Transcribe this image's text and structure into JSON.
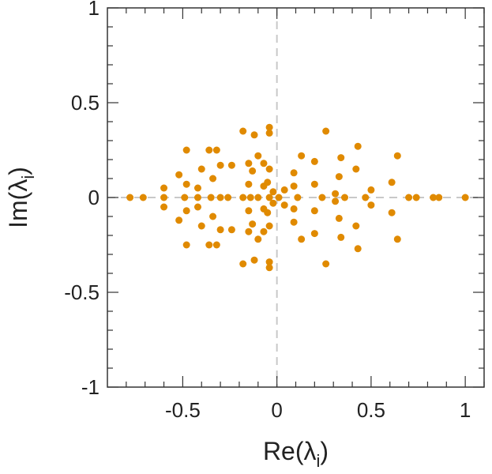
{
  "chart_data": {
    "type": "scatter",
    "title": "",
    "xlabel": "Re(λ",
    "xlabel_sub": "i",
    "ylabel": "Im(λ",
    "ylabel_sub": "i",
    "close_paren": ")",
    "xlim": [
      -0.9,
      1.1
    ],
    "ylim": [
      -1.0,
      1.0
    ],
    "xticks": [
      -0.5,
      0,
      0.5,
      1
    ],
    "xtick_labels": [
      "-0.5",
      "0",
      "0.5",
      "1"
    ],
    "yticks": [
      -1,
      -0.5,
      0,
      0.5,
      1
    ],
    "ytick_labels": [
      "-1",
      "-0.5",
      "0",
      "0.5",
      "1"
    ],
    "grid": false,
    "reference_lines": [
      "x = 0",
      "y = 0"
    ],
    "colors": {
      "points": "#e08a00",
      "reference": "#c8c8c8",
      "axes": "#333333"
    },
    "series": [
      {
        "name": "eigenvalues",
        "points": [
          [
            1.0,
            0.0
          ],
          [
            0.86,
            0.0
          ],
          [
            0.83,
            0.0
          ],
          [
            0.74,
            0.0
          ],
          [
            0.7,
            0.0
          ],
          [
            0.64,
            0.22
          ],
          [
            0.64,
            -0.22
          ],
          [
            0.61,
            0.08
          ],
          [
            0.61,
            -0.08
          ],
          [
            0.5,
            0.04
          ],
          [
            0.5,
            -0.04
          ],
          [
            0.47,
            0.0
          ],
          [
            0.43,
            0.27
          ],
          [
            0.43,
            -0.27
          ],
          [
            0.42,
            0.15
          ],
          [
            0.42,
            -0.15
          ],
          [
            0.36,
            0.0
          ],
          [
            0.34,
            0.21
          ],
          [
            0.34,
            -0.21
          ],
          [
            0.33,
            0.11
          ],
          [
            0.33,
            -0.11
          ],
          [
            0.31,
            0.02
          ],
          [
            0.31,
            -0.02
          ],
          [
            0.26,
            0.35
          ],
          [
            0.26,
            -0.35
          ],
          [
            0.24,
            0.0
          ],
          [
            0.2,
            0.19
          ],
          [
            0.2,
            -0.19
          ],
          [
            0.2,
            0.07
          ],
          [
            0.2,
            -0.07
          ],
          [
            0.13,
            0.22
          ],
          [
            0.13,
            -0.22
          ],
          [
            0.11,
            0.0
          ],
          [
            0.09,
            0.13
          ],
          [
            0.09,
            -0.13
          ],
          [
            0.09,
            0.06
          ],
          [
            0.09,
            -0.06
          ],
          [
            0.04,
            0.04
          ],
          [
            0.04,
            -0.04
          ],
          [
            0.01,
            0.0
          ],
          [
            -0.02,
            0.03
          ],
          [
            -0.02,
            -0.03
          ],
          [
            -0.04,
            0.37
          ],
          [
            -0.04,
            -0.37
          ],
          [
            -0.04,
            0.34
          ],
          [
            -0.04,
            -0.34
          ],
          [
            -0.04,
            0.15
          ],
          [
            -0.04,
            -0.15
          ],
          [
            -0.04,
            0.0
          ],
          [
            -0.05,
            0.08
          ],
          [
            -0.05,
            -0.08
          ],
          [
            -0.07,
            0.06
          ],
          [
            -0.07,
            -0.06
          ],
          [
            -0.07,
            0.18
          ],
          [
            -0.07,
            -0.18
          ],
          [
            -0.1,
            0.0
          ],
          [
            -0.1,
            0.22
          ],
          [
            -0.1,
            -0.22
          ],
          [
            -0.12,
            0.33
          ],
          [
            -0.12,
            -0.33
          ],
          [
            -0.13,
            0.14
          ],
          [
            -0.13,
            -0.14
          ],
          [
            -0.14,
            0.0
          ],
          [
            -0.15,
            0.18
          ],
          [
            -0.15,
            -0.18
          ],
          [
            -0.15,
            0.07
          ],
          [
            -0.15,
            -0.07
          ],
          [
            -0.18,
            0.35
          ],
          [
            -0.18,
            -0.35
          ],
          [
            -0.18,
            0.0
          ],
          [
            -0.24,
            0.17
          ],
          [
            -0.24,
            -0.17
          ],
          [
            -0.26,
            0.0
          ],
          [
            -0.3,
            0.17
          ],
          [
            -0.3,
            -0.17
          ],
          [
            -0.3,
            0.0
          ],
          [
            -0.32,
            0.25
          ],
          [
            -0.32,
            -0.25
          ],
          [
            -0.34,
            0.1
          ],
          [
            -0.34,
            -0.1
          ],
          [
            -0.35,
            0.0
          ],
          [
            -0.36,
            0.25
          ],
          [
            -0.36,
            -0.25
          ],
          [
            -0.4,
            0.15
          ],
          [
            -0.4,
            -0.15
          ],
          [
            -0.42,
            0.05
          ],
          [
            -0.42,
            -0.05
          ],
          [
            -0.42,
            0.0
          ],
          [
            -0.48,
            0.25
          ],
          [
            -0.48,
            -0.25
          ],
          [
            -0.48,
            0.07
          ],
          [
            -0.48,
            -0.07
          ],
          [
            -0.49,
            0.0
          ],
          [
            -0.52,
            0.12
          ],
          [
            -0.52,
            -0.12
          ],
          [
            -0.6,
            0.05
          ],
          [
            -0.6,
            -0.05
          ],
          [
            -0.6,
            0.0
          ],
          [
            -0.71,
            0.0
          ],
          [
            -0.78,
            0.0
          ]
        ]
      }
    ]
  }
}
